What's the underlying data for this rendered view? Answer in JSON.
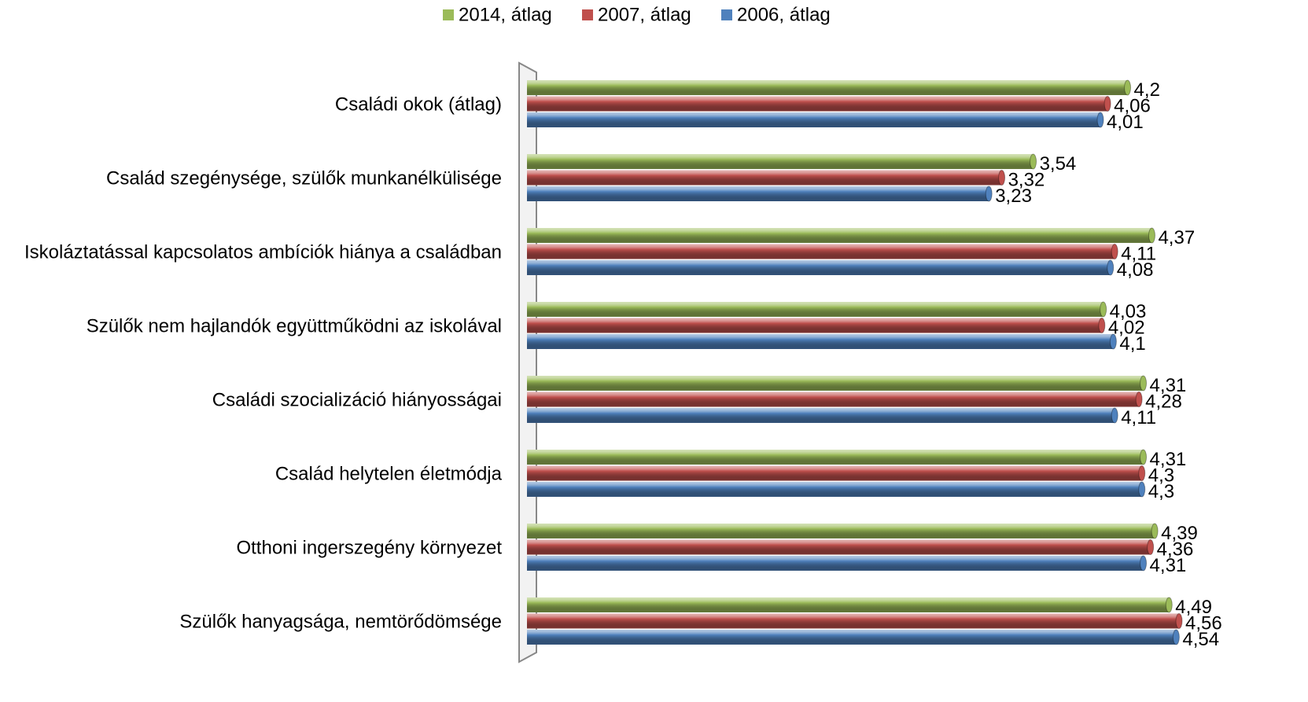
{
  "chart_data": {
    "type": "bar",
    "orientation": "horizontal",
    "legend": "top",
    "categories": [
      "Családi okok (átlag)",
      "Család szegénysége, szülők munkanélkülisége",
      "Iskoláztatással kapcsolatos ambíciók hiánya a családban",
      "Szülők nem hajlandók együttműködni az iskolával",
      "Családi szocializáció hiányosságai",
      "Család helytelen életmódja",
      "Otthoni ingerszegény környezet",
      "Szülők hanyagsága, nemtörődömsége"
    ],
    "xlim": [
      0,
      5
    ],
    "series": [
      {
        "name": "2014, átlag",
        "color": "#9bbb59",
        "values": [
          4.2,
          3.54,
          4.37,
          4.03,
          4.31,
          4.31,
          4.39,
          4.49
        ],
        "value_labels": [
          "4,2",
          "3,54",
          "4,37",
          "4,03",
          "4,31",
          "4,31",
          "4,39",
          "4,49"
        ]
      },
      {
        "name": "2007, átlag",
        "color": "#c0504d",
        "values": [
          4.06,
          3.32,
          4.11,
          4.02,
          4.28,
          4.3,
          4.36,
          4.56
        ],
        "value_labels": [
          "4,06",
          "3,32",
          "4,11",
          "4,02",
          "4,28",
          "4,3",
          "4,36",
          "4,56"
        ]
      },
      {
        "name": "2006, átlag",
        "color": "#4f81bd",
        "values": [
          4.01,
          3.23,
          4.08,
          4.1,
          4.11,
          4.3,
          4.31,
          4.54
        ],
        "value_labels": [
          "4,01",
          "3,23",
          "4,08",
          "4,1",
          "4,11",
          "4,3",
          "4,31",
          "4,54"
        ]
      }
    ]
  }
}
